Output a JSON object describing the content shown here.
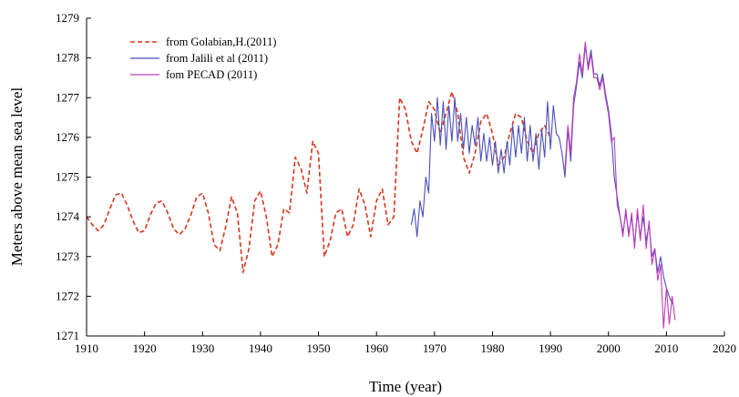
{
  "chart_data": {
    "type": "line",
    "xlabel": "Time (year)",
    "ylabel": "Meters above mean sea level",
    "xlim": [
      1910,
      2020
    ],
    "ylim": [
      1271,
      1279
    ],
    "xticks": [
      1910,
      1920,
      1930,
      1940,
      1950,
      1960,
      1970,
      1980,
      1990,
      2000,
      2010,
      2020
    ],
    "yticks": [
      1271,
      1272,
      1273,
      1274,
      1275,
      1276,
      1277,
      1278,
      1279
    ],
    "grid": false,
    "legend_position": "top-left",
    "series": [
      {
        "name": "from Golabian,H.(2011)",
        "color": "#d9341c",
        "style": "dashed",
        "x": [
          1910,
          1911,
          1912,
          1913,
          1914,
          1915,
          1916,
          1917,
          1918,
          1919,
          1920,
          1921,
          1922,
          1923,
          1924,
          1925,
          1926,
          1927,
          1928,
          1929,
          1930,
          1931,
          1932,
          1933,
          1934,
          1935,
          1936,
          1937,
          1938,
          1939,
          1940,
          1941,
          1942,
          1943,
          1944,
          1945,
          1946,
          1947,
          1948,
          1949,
          1950,
          1951,
          1952,
          1953,
          1954,
          1955,
          1956,
          1957,
          1958,
          1959,
          1960,
          1961,
          1962,
          1963,
          1964,
          1965,
          1966,
          1967,
          1968,
          1969,
          1970,
          1971,
          1972,
          1973,
          1974,
          1975,
          1976,
          1977,
          1978,
          1979,
          1980,
          1981,
          1982,
          1983,
          1984,
          1985,
          1986,
          1987,
          1988,
          1989,
          1990
        ],
        "y": [
          1274.0,
          1273.8,
          1273.65,
          1273.8,
          1274.2,
          1274.55,
          1274.6,
          1274.3,
          1273.9,
          1273.6,
          1273.65,
          1274.05,
          1274.35,
          1274.4,
          1274.1,
          1273.7,
          1273.55,
          1273.7,
          1274.05,
          1274.5,
          1274.6,
          1274.1,
          1273.3,
          1273.15,
          1273.75,
          1274.5,
          1274.1,
          1272.6,
          1273.2,
          1274.4,
          1274.65,
          1274.0,
          1273.0,
          1273.3,
          1274.2,
          1274.1,
          1275.5,
          1275.2,
          1274.6,
          1275.9,
          1275.6,
          1273.0,
          1273.4,
          1274.1,
          1274.2,
          1273.5,
          1273.8,
          1274.7,
          1274.3,
          1273.5,
          1274.4,
          1274.7,
          1273.8,
          1274.0,
          1277.0,
          1276.7,
          1275.9,
          1275.6,
          1276.2,
          1276.9,
          1276.7,
          1276.1,
          1276.6,
          1277.15,
          1276.6,
          1275.5,
          1275.1,
          1275.6,
          1276.4,
          1276.6,
          1276.1,
          1275.3,
          1275.5,
          1276.1,
          1276.6,
          1276.5,
          1275.9,
          1275.6,
          1276.1,
          1276.3,
          1276.0
        ]
      },
      {
        "name": "from Jalili et al (2011)",
        "color": "#4a4fb8",
        "style": "solid",
        "x": [
          1966.0,
          1966.5,
          1967.0,
          1967.5,
          1968.0,
          1968.5,
          1969.0,
          1969.5,
          1970.0,
          1970.5,
          1971.0,
          1971.5,
          1972.0,
          1972.5,
          1973.0,
          1973.5,
          1974.0,
          1974.5,
          1975.0,
          1975.5,
          1976.0,
          1976.5,
          1977.0,
          1977.5,
          1978.0,
          1978.5,
          1979.0,
          1979.5,
          1980.0,
          1980.5,
          1981.0,
          1981.5,
          1982.0,
          1982.5,
          1983.0,
          1983.5,
          1984.0,
          1984.5,
          1985.0,
          1985.5,
          1986.0,
          1986.5,
          1987.0,
          1987.5,
          1988.0,
          1988.5,
          1989.0,
          1989.5,
          1990.0,
          1990.5,
          1991.0,
          1991.5,
          1992.0,
          1992.5,
          1993.0,
          1993.5,
          1994.0,
          1994.5,
          1995.0,
          1995.5,
          1996.0,
          1996.5,
          1997.0,
          1997.5,
          1998.0,
          1998.5,
          1999.0,
          1999.5,
          2000.0,
          2000.5,
          2001.0,
          2001.5,
          2002.0,
          2002.5,
          2003.0,
          2003.5,
          2004.0,
          2004.5,
          2005.0,
          2005.5,
          2006.0,
          2006.5,
          2007.0,
          2007.5,
          2008.0,
          2008.5,
          2009.0,
          2009.5,
          2010.0,
          2010.5,
          2011.0
        ],
        "y": [
          1273.8,
          1274.2,
          1273.5,
          1274.4,
          1274.0,
          1275.0,
          1274.6,
          1276.6,
          1275.9,
          1277.0,
          1275.8,
          1276.9,
          1275.7,
          1276.8,
          1275.9,
          1277.0,
          1275.9,
          1276.6,
          1275.7,
          1276.5,
          1275.6,
          1276.3,
          1275.8,
          1276.5,
          1275.4,
          1276.1,
          1275.4,
          1276.0,
          1275.3,
          1275.9,
          1275.1,
          1275.7,
          1275.1,
          1275.9,
          1275.3,
          1276.3,
          1275.5,
          1276.3,
          1275.6,
          1276.5,
          1275.4,
          1276.3,
          1275.4,
          1276.1,
          1275.2,
          1276.2,
          1275.5,
          1276.9,
          1275.7,
          1276.8,
          1276.1,
          1276.0,
          1275.6,
          1275.0,
          1276.2,
          1275.4,
          1276.8,
          1277.3,
          1277.9,
          1277.5,
          1278.3,
          1277.8,
          1278.2,
          1277.6,
          1277.6,
          1277.3,
          1277.6,
          1277.1,
          1276.7,
          1276.1,
          1275.0,
          1274.5,
          1274.0,
          1273.6,
          1274.1,
          1273.6,
          1274.0,
          1273.3,
          1274.1,
          1273.5,
          1274.0,
          1273.4,
          1273.8,
          1273.0,
          1273.2,
          1272.6,
          1273.0,
          1272.5,
          1272.2,
          1272.0,
          1271.8
        ]
      },
      {
        "name": "fom PECAD (2011)",
        "color": "#c03ab8",
        "style": "solid",
        "x": [
          1992.5,
          1993.0,
          1993.5,
          1994.0,
          1994.5,
          1995.0,
          1995.5,
          1996.0,
          1996.5,
          1997.0,
          1997.5,
          1998.0,
          1998.5,
          1999.0,
          1999.5,
          2000.0,
          2000.5,
          2001.0,
          2001.5,
          2002.0,
          2002.5,
          2003.0,
          2003.5,
          2004.0,
          2004.5,
          2005.0,
          2005.5,
          2006.0,
          2006.5,
          2007.0,
          2007.5,
          2008.0,
          2008.5,
          2009.0,
          2009.5,
          2010.0,
          2010.5,
          2011.0,
          2011.5
        ],
        "y": [
          1275.2,
          1276.3,
          1275.6,
          1277.0,
          1277.4,
          1278.1,
          1277.6,
          1278.4,
          1277.7,
          1278.1,
          1277.5,
          1277.5,
          1277.2,
          1277.5,
          1277.0,
          1276.6,
          1275.9,
          1276.0,
          1274.3,
          1274.0,
          1273.5,
          1274.2,
          1273.5,
          1274.1,
          1273.2,
          1274.2,
          1273.4,
          1274.3,
          1273.2,
          1273.9,
          1272.8,
          1273.2,
          1272.4,
          1272.8,
          1271.2,
          1272.2,
          1271.3,
          1272.0,
          1271.4
        ]
      }
    ]
  }
}
